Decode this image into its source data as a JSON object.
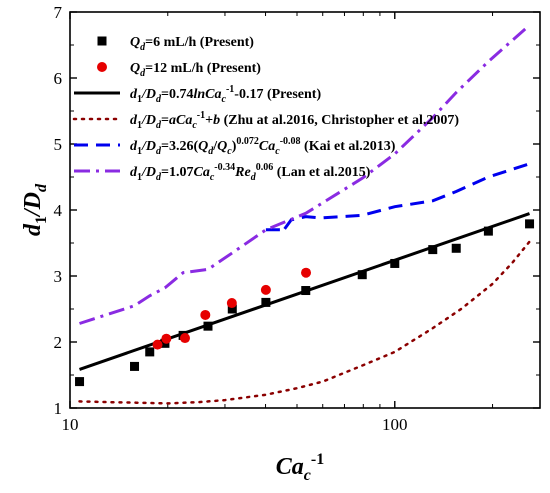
{
  "chart_data": {
    "type": "scatter",
    "x_scale": "log",
    "xlim": [
      10,
      280
    ],
    "ylim": [
      1,
      7
    ],
    "x_ticks": [
      10,
      100
    ],
    "x_tick_labels": [
      "10",
      "100"
    ],
    "y_ticks": [
      1,
      2,
      3,
      4,
      5,
      6,
      7
    ],
    "y_tick_labels": [
      "1",
      "2",
      "3",
      "4",
      "5",
      "6",
      "7"
    ],
    "xlabel": "Ca_c^-1",
    "ylabel": "d1/Dd",
    "grid": false,
    "legend_position": "top-left",
    "series": [
      {
        "name": "Qd=6 mL/h (Present)",
        "kind": "markers",
        "marker": "square",
        "color": "#000000",
        "x": [
          10.7,
          15.8,
          17.6,
          19.6,
          22.3,
          26.6,
          31.6,
          40.1,
          53.2,
          79.4,
          100.0,
          130.9,
          154.6,
          194.2,
          260.0
        ],
        "y": [
          1.4,
          1.63,
          1.85,
          1.98,
          2.1,
          2.24,
          2.5,
          2.6,
          2.78,
          3.02,
          3.19,
          3.4,
          3.42,
          3.68,
          3.79
        ]
      },
      {
        "name": "Qd=12 mL/h (Present)",
        "kind": "markers",
        "marker": "circle",
        "color": "#e60000",
        "x": [
          18.6,
          19.8,
          22.6,
          26.1,
          31.5,
          40.1,
          53.3
        ],
        "y": [
          1.96,
          2.05,
          2.06,
          2.41,
          2.59,
          2.79,
          3.05
        ]
      },
      {
        "name": "d1/Dd=0.74lnCac-1-0.17 (Present)",
        "kind": "line",
        "dash": "solid",
        "color": "#000000",
        "x": [
          10.7,
          260.0
        ],
        "y": [
          1.585,
          3.945
        ]
      },
      {
        "name": "d1/Dd=aCac-1+b (Zhu at al.2016, Christopher et al.2007)",
        "kind": "line",
        "dash": "dot",
        "color": "#8b0000",
        "x": [
          10.7,
          13,
          16,
          20,
          25,
          30,
          40,
          50,
          60,
          80,
          100,
          130,
          160,
          200,
          230,
          260
        ],
        "y": [
          1.1,
          1.09,
          1.08,
          1.07,
          1.09,
          1.12,
          1.2,
          1.3,
          1.4,
          1.65,
          1.85,
          2.2,
          2.5,
          2.88,
          3.2,
          3.52
        ]
      },
      {
        "name": "d1/Dd=3.26(Qd/Qc)0.072Cac-0.08 (Kai et al.2013)",
        "kind": "line",
        "dash": "dash",
        "color": "#0000ee",
        "x": [
          40.1,
          41.0,
          44.5,
          45.0,
          48.0,
          53.2,
          59.0,
          79.4,
          100.0,
          130.9,
          154.6,
          194.2,
          260.0
        ],
        "y": [
          3.7,
          3.7,
          3.7,
          3.66,
          3.85,
          3.9,
          3.88,
          3.92,
          4.05,
          4.14,
          4.28,
          4.5,
          4.7
        ]
      },
      {
        "name": "d1/Dd=1.07Cac-0.34Red0.06 (Lan et al.2015)",
        "kind": "line",
        "dash": "dashdot",
        "color": "#8a2be2",
        "x": [
          10.7,
          15.8,
          17.6,
          19.6,
          22.3,
          26.6,
          31.6,
          40.1,
          53.2,
          79.4,
          100.0,
          130.9,
          154.6,
          194.2,
          260.0
        ],
        "y": [
          2.28,
          2.55,
          2.7,
          2.82,
          3.05,
          3.1,
          3.35,
          3.7,
          3.95,
          4.48,
          4.85,
          5.4,
          5.78,
          6.25,
          6.8
        ]
      }
    ]
  },
  "legend": [
    {
      "lhs": "Q",
      "sub": "d",
      "rest": "=6 mL/h (Present)"
    },
    {
      "lhs": "Q",
      "sub": "d",
      "rest": "=12 mL/h (Present)"
    },
    {
      "eq": "d1/Dd=0.74lnCac-1-0.17",
      "ref": " (Present)"
    },
    {
      "eq": "d1/Dd=aCac-1+b",
      "ref": " (Zhu at al.2016, Christopher et al.2007)"
    },
    {
      "eq": "d1/Dd=3.26(Qd/Qc)0.072Cac-0.08",
      "ref": " (Kai et al.2013)"
    },
    {
      "eq": "d1/Dd=1.07Cac-0.34Red0.06",
      "ref": " (Lan et al.2015)"
    }
  ]
}
